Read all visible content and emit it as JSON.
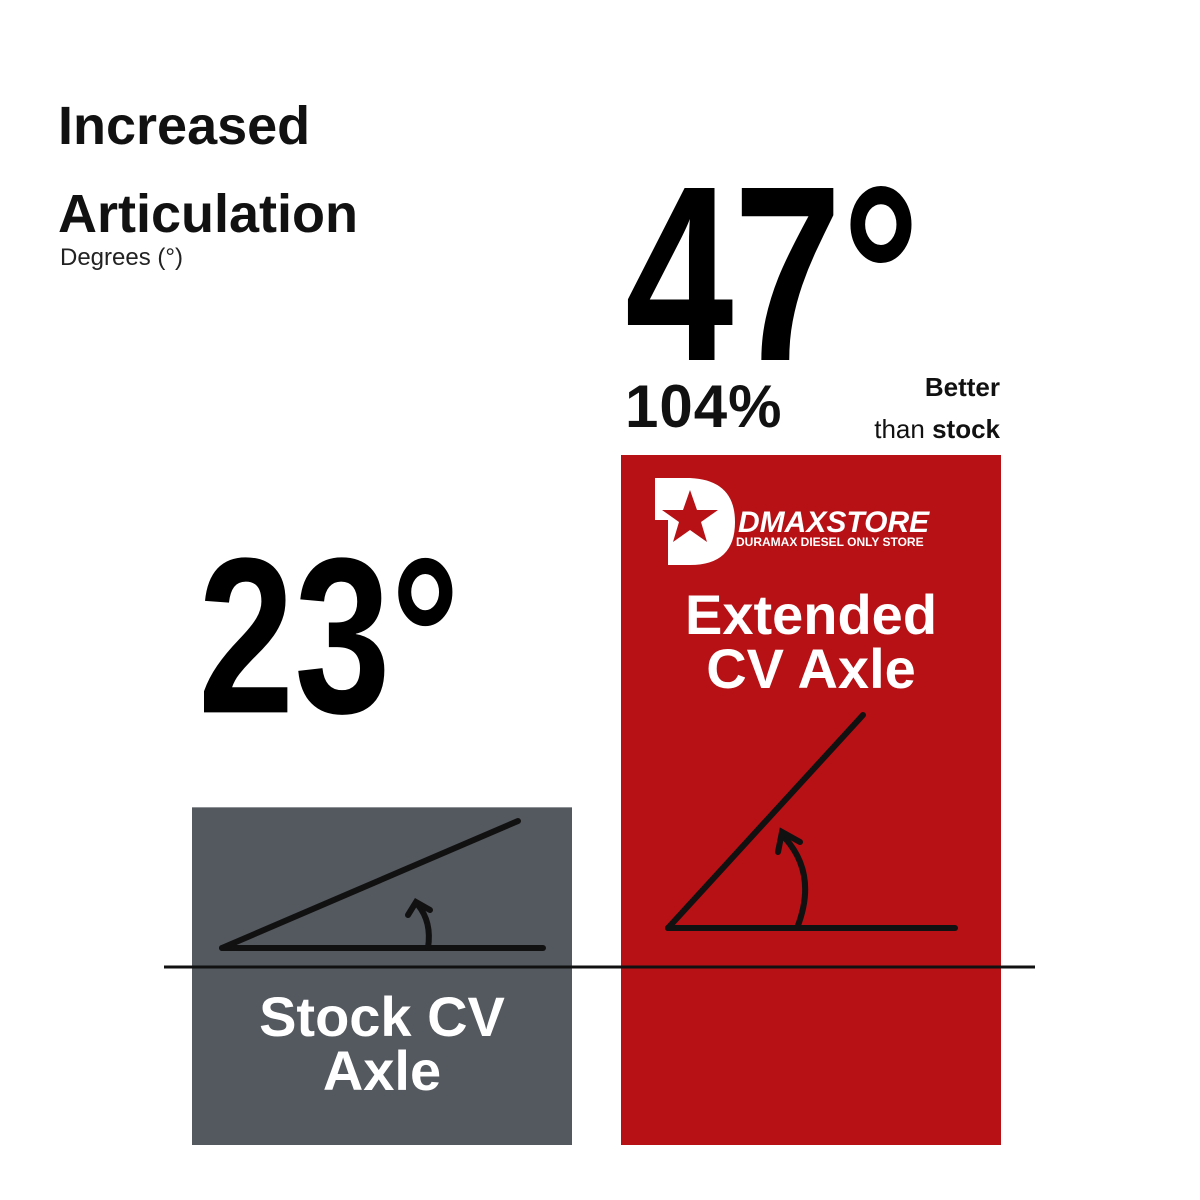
{
  "chart_data": {
    "type": "bar",
    "title": "Increased Articulation",
    "subtitle": "Degrees (°)",
    "categories": [
      "Stock CV Axle",
      "Extended CV Axle"
    ],
    "values": [
      23,
      47
    ],
    "value_labels": [
      "23°",
      "47°"
    ],
    "colors": [
      "#54595f",
      "#b71115"
    ],
    "annotation": "104%",
    "annotation_note": {
      "line1": "Better",
      "line2": "than",
      "bold": "stock"
    },
    "logo": {
      "name": "DMAXSTORE",
      "tagline": "DURAMAX DIESEL ONLY STORE"
    }
  }
}
